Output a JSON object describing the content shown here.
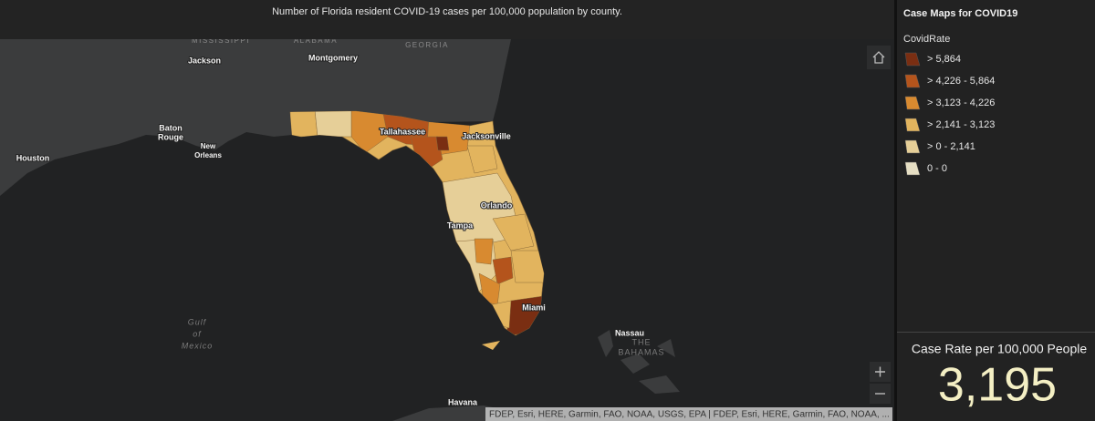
{
  "header": {
    "title": "Number of Florida resident COVID-19 cases per 100,000 population by county."
  },
  "map": {
    "states": [
      "MISSISSIPPI",
      "ALABAMA",
      "GEORGIA"
    ],
    "cities": [
      "Jackson",
      "Montgomery",
      "Houston",
      "Tallahassee",
      "Jacksonville",
      "Orlando",
      "Tampa",
      "Miami",
      "Nassau",
      "Havana"
    ],
    "baton_rouge": [
      "Baton",
      "Rouge"
    ],
    "new_orleans": [
      "New",
      "Orleans"
    ],
    "gulf": [
      "Gulf",
      "of",
      "Mexico"
    ],
    "bahamas": [
      "THE",
      "BAHAMAS"
    ],
    "attribution": "FDEP, Esri, HERE, Garmin, FAO, NOAA, USGS, EPA | FDEP, Esri, HERE, Garmin, FAO, NOAA, ..."
  },
  "legend": {
    "title": "Case Maps for COVID19",
    "field": "CovidRate",
    "items": [
      {
        "label": "> 5,864",
        "color": "#7a2e12"
      },
      {
        "label": "> 4,226 - 5,864",
        "color": "#b4541c"
      },
      {
        "label": "> 3,123 - 4,226",
        "color": "#d88a30"
      },
      {
        "label": "> 2,141 - 3,123",
        "color": "#e2b45e"
      },
      {
        "label": "> 0 - 2,141",
        "color": "#e6cf98"
      },
      {
        "label": "0 - 0",
        "color": "#e6dfc4"
      }
    ]
  },
  "summary": {
    "label": "Case Rate per 100,000 People",
    "value": "3,195"
  }
}
